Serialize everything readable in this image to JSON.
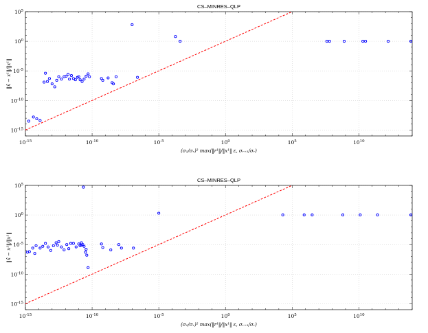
{
  "chart_data": [
    {
      "type": "scatter",
      "title": "CS–MINRES–QLP",
      "xlabel": "(σ₁/σᵣ)² max(‖r¹‖/‖x¹‖ ε, σᵣ₊₁/σᵣ)",
      "ylabel": "‖x̂ − x¹‖/‖x¹‖",
      "xscale": "log",
      "yscale": "log",
      "xlim_exp": [
        -15,
        14
      ],
      "ylim_exp": [
        -16,
        5
      ],
      "x_tick_exps": [
        -15,
        -10,
        -5,
        0,
        5,
        10
      ],
      "y_tick_exps": [
        -15,
        -10,
        -5,
        0,
        5
      ],
      "grid": true,
      "reference_line": {
        "style": "dashed",
        "color": "#ff0000",
        "x_exp": [
          -15,
          5
        ],
        "y_exp": [
          -15,
          5
        ]
      },
      "marker_color": "#0000ff",
      "series": [
        {
          "points_exp": [
            [
              -14.75,
              -13.5
            ],
            [
              -14.4,
              -12.8
            ],
            [
              -14.15,
              -13.1
            ],
            [
              -13.9,
              -13.4
            ],
            [
              -13.6,
              -6.9
            ],
            [
              -13.5,
              -5.4
            ],
            [
              -13.35,
              -6.8
            ],
            [
              -13.2,
              -6.3
            ],
            [
              -13.0,
              -7.2
            ],
            [
              -12.8,
              -7.7
            ],
            [
              -12.65,
              -6.6
            ],
            [
              -12.5,
              -6.0
            ],
            [
              -12.3,
              -6.4
            ],
            [
              -12.1,
              -6.0
            ],
            [
              -11.95,
              -5.9
            ],
            [
              -11.8,
              -5.6
            ],
            [
              -11.7,
              -6.4
            ],
            [
              -11.55,
              -5.8
            ],
            [
              -11.4,
              -6.3
            ],
            [
              -11.25,
              -6.5
            ],
            [
              -11.1,
              -6.1
            ],
            [
              -11.0,
              -6.0
            ],
            [
              -10.9,
              -6.5
            ],
            [
              -10.75,
              -6.8
            ],
            [
              -10.6,
              -6.4
            ],
            [
              -10.45,
              -5.9
            ],
            [
              -10.3,
              -5.5
            ],
            [
              -10.2,
              -6.0
            ],
            [
              -9.3,
              -6.3
            ],
            [
              -9.2,
              -6.6
            ],
            [
              -8.8,
              -6.2
            ],
            [
              -8.5,
              -7.0
            ],
            [
              -8.4,
              -7.2
            ],
            [
              -8.2,
              -6.0
            ],
            [
              -7.0,
              2.8
            ],
            [
              -6.6,
              -6.1
            ],
            [
              -3.75,
              0.8
            ],
            [
              -3.4,
              0.0
            ],
            [
              7.6,
              0.0
            ],
            [
              7.8,
              0.0
            ],
            [
              8.9,
              0.0
            ],
            [
              10.3,
              0.0
            ],
            [
              10.5,
              0.0
            ],
            [
              12.2,
              0.0
            ],
            [
              13.9,
              0.0
            ]
          ]
        }
      ]
    },
    {
      "type": "scatter",
      "title": "CS–MINRES–QLP",
      "xlabel": "(σ₁/σᵣ)² max(‖r¹‖/‖x¹‖ ε, σᵣ₊₁/σᵣ)",
      "ylabel": "‖x̂ − x¹‖/‖x¹‖",
      "xscale": "log",
      "yscale": "log",
      "xlim_exp": [
        -15,
        14
      ],
      "ylim_exp": [
        -16,
        5
      ],
      "x_tick_exps": [
        -15,
        -10,
        -5,
        0,
        5,
        10
      ],
      "y_tick_exps": [
        -15,
        -10,
        -5,
        0,
        5
      ],
      "grid": true,
      "reference_line": {
        "style": "dashed",
        "color": "#ff0000",
        "x_exp": [
          -15,
          5
        ],
        "y_exp": [
          -15,
          5
        ]
      },
      "marker_color": "#0000ff",
      "series": [
        {
          "points_exp": [
            [
              -14.85,
              -6.3
            ],
            [
              -14.7,
              -6.2
            ],
            [
              -14.45,
              -5.6
            ],
            [
              -14.3,
              -6.5
            ],
            [
              -14.2,
              -5.2
            ],
            [
              -13.9,
              -5.6
            ],
            [
              -13.7,
              -5.3
            ],
            [
              -13.5,
              -4.8
            ],
            [
              -13.3,
              -5.4
            ],
            [
              -13.1,
              -6.0
            ],
            [
              -12.9,
              -5.2
            ],
            [
              -12.7,
              -4.7
            ],
            [
              -12.6,
              -5.1
            ],
            [
              -12.5,
              -4.5
            ],
            [
              -12.3,
              -5.4
            ],
            [
              -12.1,
              -5.9
            ],
            [
              -11.9,
              -5.0
            ],
            [
              -11.75,
              -5.7
            ],
            [
              -11.6,
              -4.8
            ],
            [
              -11.4,
              -4.8
            ],
            [
              -11.2,
              -5.4
            ],
            [
              -11.0,
              -4.9
            ],
            [
              -10.9,
              -5.2
            ],
            [
              -10.8,
              -4.7
            ],
            [
              -10.7,
              -5.0
            ],
            [
              -10.6,
              -5.3
            ],
            [
              -10.5,
              -6.3
            ],
            [
              -10.4,
              -6.8
            ],
            [
              -10.3,
              -8.9
            ],
            [
              -10.45,
              -5.8
            ],
            [
              -10.8,
              -5.1
            ],
            [
              -10.65,
              4.7
            ],
            [
              -9.3,
              -4.9
            ],
            [
              -9.2,
              -5.5
            ],
            [
              -8.6,
              -5.9
            ],
            [
              -8.0,
              -5.0
            ],
            [
              -7.8,
              -5.6
            ],
            [
              -6.9,
              -5.6
            ],
            [
              -5.0,
              0.3
            ],
            [
              4.3,
              0.0
            ],
            [
              5.9,
              0.0
            ],
            [
              6.5,
              0.0
            ],
            [
              8.8,
              0.0
            ],
            [
              10.1,
              0.0
            ],
            [
              11.4,
              0.0
            ],
            [
              13.9,
              0.0
            ]
          ]
        }
      ]
    }
  ]
}
